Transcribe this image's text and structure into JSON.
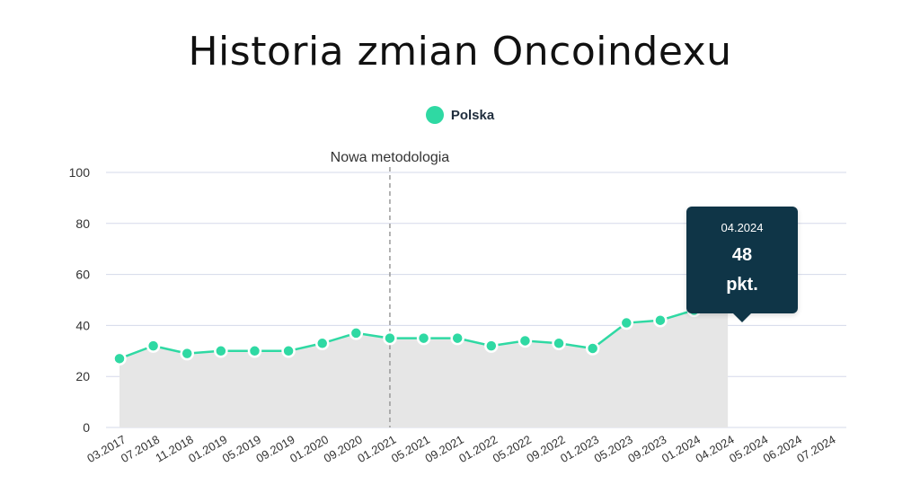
{
  "title": "Historia zmian Oncoindexu",
  "legend": {
    "label": "Polska",
    "color": "#2fd9a3"
  },
  "annotation": {
    "label": "Nowa metodologia",
    "x_category": "01.2021"
  },
  "tooltip": {
    "date": "04.2024",
    "value": "48",
    "unit": "pkt."
  },
  "colors": {
    "line": "#2fd9a3",
    "area": "#e6e6e6",
    "grid": "#d5d9ea",
    "tooltip_bg": "#0f3547"
  },
  "chart_data": {
    "type": "area",
    "title": "Historia zmian Oncoindexu",
    "xlabel": "",
    "ylabel": "",
    "ylim": [
      0,
      100
    ],
    "yticks": [
      0,
      20,
      40,
      60,
      80,
      100
    ],
    "grid": true,
    "legend_position": "top-center",
    "categories": [
      "03.2017",
      "07.2018",
      "11.2018",
      "01.2019",
      "05.2019",
      "09.2019",
      "01.2020",
      "09.2020",
      "01.2021",
      "05.2021",
      "09.2021",
      "01.2022",
      "05.2022",
      "09.2022",
      "01.2023",
      "05.2023",
      "09.2023",
      "01.2024",
      "04.2024",
      "05.2024",
      "06.2024",
      "07.2024"
    ],
    "series": [
      {
        "name": "Polska",
        "values": [
          27,
          32,
          29,
          30,
          30,
          30,
          33,
          37,
          35,
          35,
          35,
          32,
          34,
          33,
          31,
          41,
          42,
          46,
          48,
          null,
          null,
          null
        ]
      }
    ]
  }
}
